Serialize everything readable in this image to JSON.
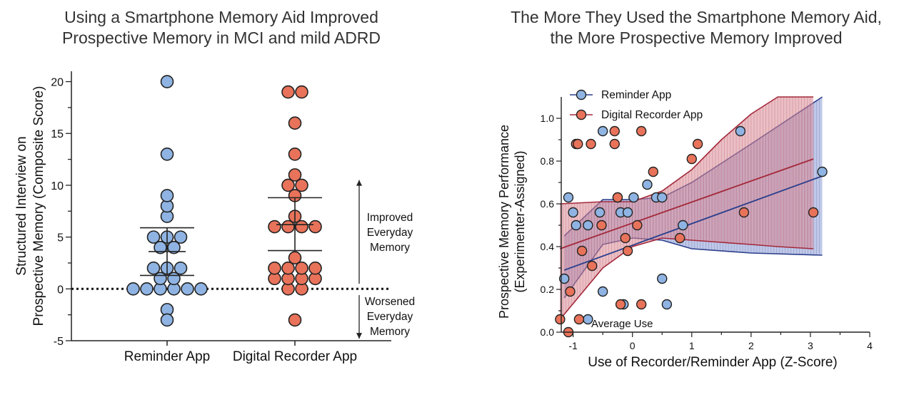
{
  "panel_titles": {
    "left_line1": "Using a Smartphone Memory Aid Improved",
    "left_line2": "Prospective Memory in MCI and mild ADRD",
    "right_line1": "The More They Used the Smartphone Memory Aid,",
    "right_line2": "the More Prospective Memory Improved"
  },
  "colors": {
    "blue": "#8fb4e3",
    "red": "#e8735a",
    "blue_line": "#2b3f8c",
    "red_line": "#a3283a",
    "red_band": "#d98a95",
    "blue_band": "#8c9bd6"
  },
  "annotations": {
    "improved": [
      "Improved",
      "Everyday",
      "Memory"
    ],
    "worsened": [
      "Worsened",
      "Everyday",
      "Memory"
    ],
    "average_use": "Average Use"
  },
  "chart_data": [
    {
      "type": "scatter",
      "chart_kind": "dot plot with mean and 95% CI",
      "title": "Using a Smartphone Memory Aid Improved Prospective Memory in MCI and mild ADRD",
      "ylabel": [
        "Structured Interview on",
        "Prospective Memory (Composite Score)"
      ],
      "ylim": [
        -5,
        21
      ],
      "yticks": [
        -5,
        0,
        5,
        10,
        15,
        20
      ],
      "categories": [
        "Reminder App",
        "Digital Recorder App"
      ],
      "reference_line": 0,
      "series": [
        {
          "name": "Reminder App",
          "color": "#8fb4e3",
          "values": [
            20,
            13,
            9,
            8,
            7,
            5,
            5,
            5,
            4,
            4,
            2,
            2,
            2,
            1,
            1,
            0,
            0,
            0,
            0,
            0,
            0,
            -2,
            -3
          ],
          "mean": 3.6,
          "ci": [
            1.3,
            5.9
          ]
        },
        {
          "name": "Digital Recorder App",
          "color": "#e8735a",
          "values": [
            19,
            19,
            16,
            13,
            11,
            10,
            10,
            9,
            7,
            6,
            6,
            6,
            6,
            3,
            2,
            2,
            2,
            2,
            1,
            1,
            1,
            1,
            0,
            0,
            -3
          ],
          "mean": 6.2,
          "ci": [
            3.7,
            8.8
          ]
        }
      ]
    },
    {
      "type": "scatter",
      "title": "The More They Used the Smartphone Memory Aid, the More Prospective Memory Improved",
      "xlabel": "Use of Recorder/Reminder App (Z-Score)",
      "ylabel": [
        "Prospective Memory Performance",
        "(Experimenter-Assigned)"
      ],
      "xlim": [
        -1.2,
        4
      ],
      "ylim": [
        0,
        1.1
      ],
      "xticks": [
        -1,
        0,
        1,
        2,
        3,
        4
      ],
      "yticks": [
        0.0,
        0.2,
        0.4,
        0.6,
        0.8,
        1.0
      ],
      "legend": "top-left",
      "series": [
        {
          "name": "Reminder App",
          "color": "#8fb4e3",
          "points": [
            [
              -1.15,
              0.25
            ],
            [
              -1.08,
              0.63
            ],
            [
              -1.0,
              0.56
            ],
            [
              -0.95,
              0.5
            ],
            [
              -0.75,
              0.5
            ],
            [
              -0.55,
              0.56
            ],
            [
              -0.5,
              0.94
            ],
            [
              -0.5,
              0.19
            ],
            [
              -0.75,
              0.06
            ],
            [
              -0.25,
              0.63
            ],
            [
              -0.2,
              0.56
            ],
            [
              -0.15,
              0.13
            ],
            [
              -0.08,
              0.56
            ],
            [
              0.02,
              0.63
            ],
            [
              0.25,
              0.69
            ],
            [
              0.4,
              0.63
            ],
            [
              0.5,
              0.63
            ],
            [
              0.5,
              0.25
            ],
            [
              0.58,
              0.13
            ],
            [
              0.85,
              0.5
            ],
            [
              1.82,
              0.94
            ],
            [
              3.2,
              0.75
            ]
          ],
          "fit": {
            "x": [
              -1.15,
              3.2
            ],
            "y": [
              0.29,
              0.73
            ]
          },
          "ci_band": {
            "x": [
              -1.15,
              -0.5,
              0.0,
              0.5,
              1.0,
              2.0,
              3.2
            ],
            "lower": [
              0.16,
              0.41,
              0.44,
              0.43,
              0.39,
              0.37,
              0.36
            ],
            "upper": [
              0.45,
              0.62,
              0.62,
              0.63,
              0.7,
              0.88,
              1.1
            ]
          }
        },
        {
          "name": "Digital Recorder App",
          "color": "#e8735a",
          "points": [
            [
              -1.22,
              0.06
            ],
            [
              -1.05,
              0.19
            ],
            [
              -1.08,
              0.0
            ],
            [
              -0.95,
              0.88
            ],
            [
              -0.92,
              0.88
            ],
            [
              -0.9,
              0.06
            ],
            [
              -0.85,
              0.38
            ],
            [
              -0.7,
              0.88
            ],
            [
              -0.68,
              0.31
            ],
            [
              -0.52,
              0.5
            ],
            [
              -0.3,
              0.94
            ],
            [
              -0.3,
              0.88
            ],
            [
              -0.25,
              0.63
            ],
            [
              -0.2,
              0.13
            ],
            [
              -0.12,
              0.44
            ],
            [
              -0.08,
              0.38
            ],
            [
              0.08,
              0.5
            ],
            [
              0.15,
              0.94
            ],
            [
              0.15,
              0.13
            ],
            [
              0.35,
              0.75
            ],
            [
              0.8,
              0.44
            ],
            [
              1.0,
              0.81
            ],
            [
              1.1,
              0.88
            ],
            [
              1.88,
              0.56
            ],
            [
              3.05,
              0.56
            ]
          ],
          "fit": {
            "x": [
              -1.22,
              3.05
            ],
            "y": [
              0.39,
              0.81
            ]
          },
          "ci_band": {
            "x": [
              -1.22,
              -0.5,
              0.0,
              0.5,
              1.0,
              1.5,
              2.0,
              2.45,
              3.05
            ],
            "lower": [
              0.06,
              0.3,
              0.4,
              0.44,
              0.43,
              0.42,
              0.41,
              0.4,
              0.39
            ],
            "upper": [
              0.6,
              0.61,
              0.61,
              0.66,
              0.76,
              0.9,
              1.02,
              1.1,
              1.1
            ]
          }
        }
      ]
    }
  ]
}
